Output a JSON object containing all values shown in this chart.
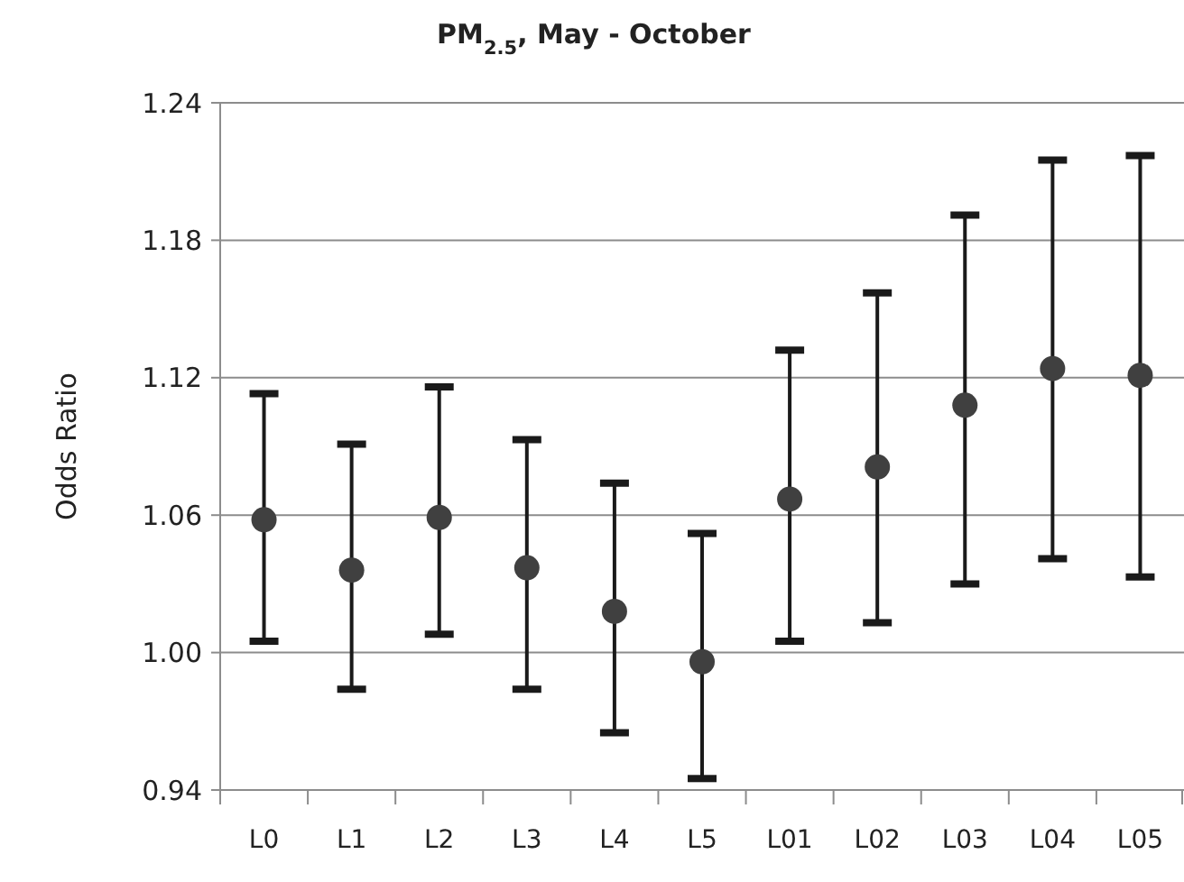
{
  "chart_data": {
    "type": "scatter",
    "title": "PM$_{2.5}$, May - October",
    "ylabel": "Odds Ratio",
    "categories": [
      "L0",
      "L1",
      "L2",
      "L3",
      "L4",
      "L5",
      "L01",
      "L02",
      "L03",
      "L04",
      "L05"
    ],
    "series": [
      {
        "color": "#404040",
        "values": [
          1.058,
          1.036,
          1.059,
          1.037,
          1.018,
          0.996,
          1.067,
          1.081,
          1.108,
          1.124,
          1.121
        ],
        "errors": [
          [
            1.005,
            1.113
          ],
          [
            0.984,
            1.091
          ],
          [
            1.008,
            1.116
          ],
          [
            0.984,
            1.093
          ],
          [
            0.965,
            1.074
          ],
          [
            0.945,
            1.052
          ],
          [
            1.005,
            1.132
          ],
          [
            1.013,
            1.157
          ],
          [
            1.03,
            1.191
          ],
          [
            1.041,
            1.215
          ],
          [
            1.033,
            1.217
          ]
        ]
      }
    ],
    "ylim": [
      0.94,
      1.24
    ],
    "yticks": [
      {
        "value": 0.94,
        "label": "0.94"
      },
      {
        "value": 1.0,
        "label": "1.00"
      },
      {
        "value": 1.06,
        "label": "1.06"
      },
      {
        "value": 1.12,
        "label": "1.12"
      },
      {
        "value": 1.18,
        "label": "1.18"
      },
      {
        "value": 1.24,
        "label": "1.24"
      }
    ],
    "grid": "y",
    "marker": "circle"
  }
}
